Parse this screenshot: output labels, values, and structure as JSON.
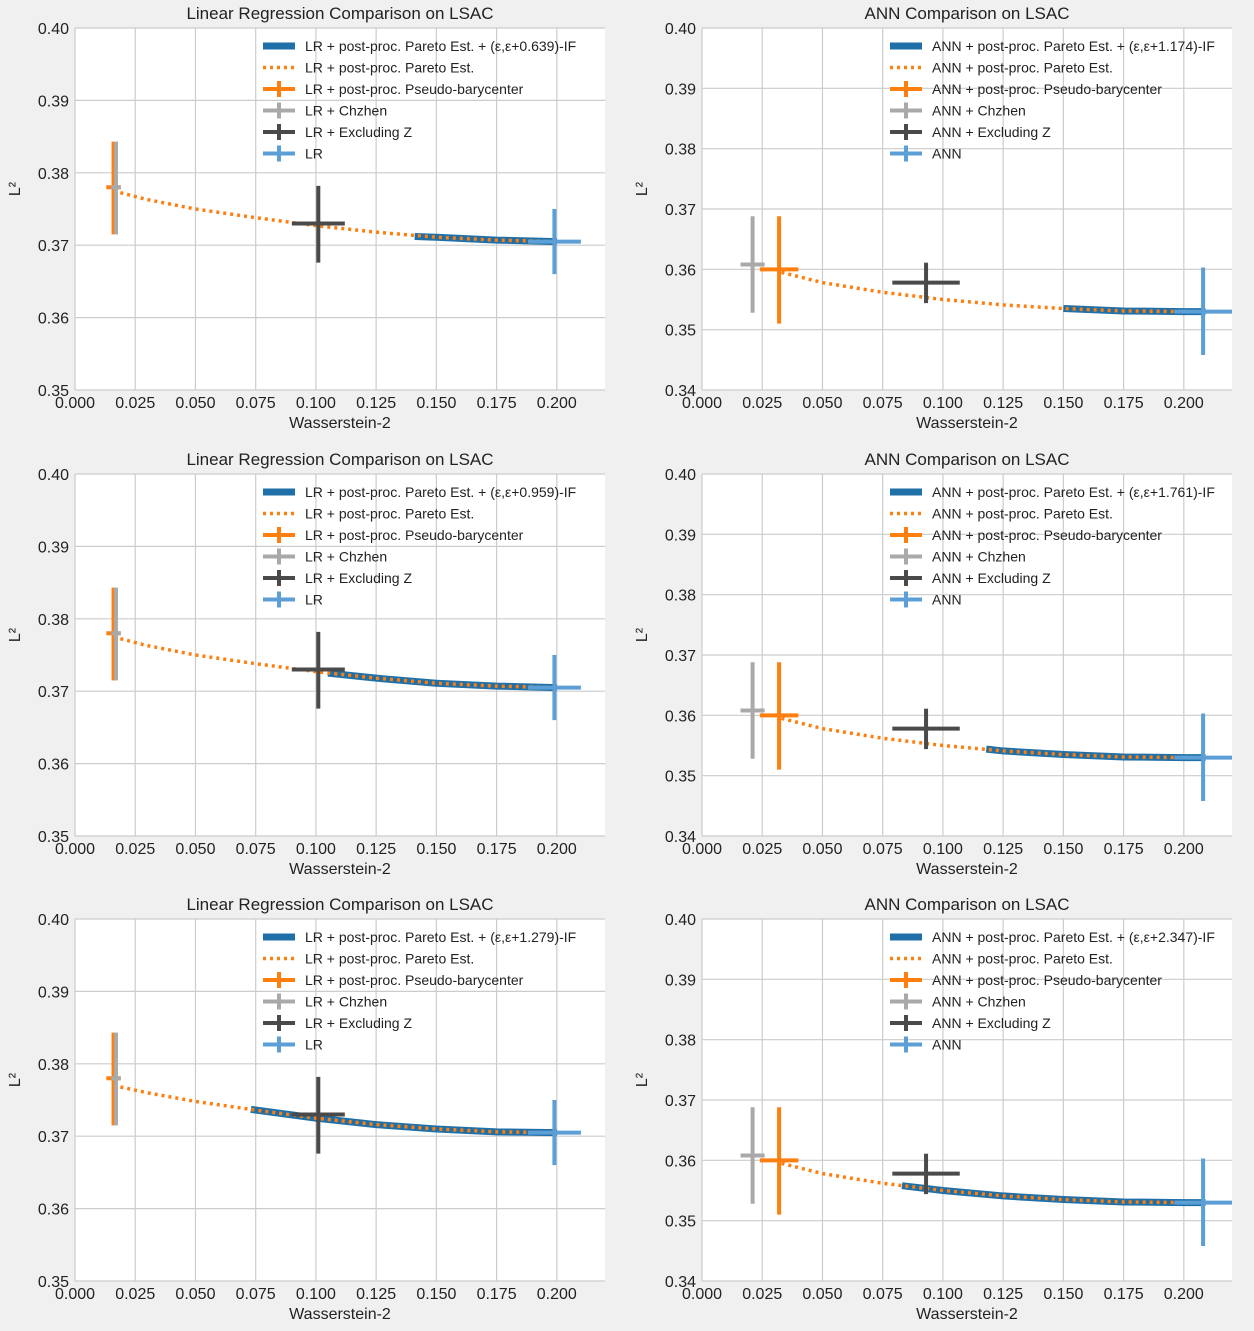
{
  "colors": {
    "pareto_if": "#1f6fa8",
    "pareto": "#ff7f0e",
    "pseudo_barycenter": "#ff7f0e",
    "chzhen": "#a9a9a9",
    "excluding_z": "#4a4a4a",
    "base": "#5b9fd6",
    "grid": "#cccccc",
    "plot_bg": "#ffffff",
    "figure_bg": "#f0f0f0"
  },
  "xlabel": "Wasserstein-2",
  "ylabel": "L²",
  "chart_data": [
    {
      "type": "line",
      "title": "Linear Regression Comparison on LSAC",
      "xlabel": "Wasserstein-2",
      "ylabel": "L²",
      "xlim": [
        0.0,
        0.22
      ],
      "ylim": [
        0.35,
        0.4
      ],
      "xticks": [
        "0.000",
        "0.025",
        "0.050",
        "0.075",
        "0.100",
        "0.125",
        "0.150",
        "0.175",
        "0.200"
      ],
      "yticks": [
        "0.35",
        "0.36",
        "0.37",
        "0.38",
        "0.39",
        "0.40"
      ],
      "grid": true,
      "legend_position": "top-right",
      "legend": [
        "LR + post-proc. Pareto Est. + (ε,ε+0.639)-IF",
        "LR + post-proc. Pareto Est.",
        "LR + post-proc. Pseudo-barycenter",
        "LR + Chzhen",
        "LR + Excluding Z",
        "LR"
      ],
      "pareto_curve": {
        "x": [
          0.016,
          0.03,
          0.05,
          0.075,
          0.1,
          0.125,
          0.15,
          0.175,
          0.2
        ],
        "y": [
          0.3775,
          0.3763,
          0.375,
          0.3738,
          0.3727,
          0.3718,
          0.3711,
          0.3707,
          0.3705
        ]
      },
      "if_segment": {
        "x": [
          0.141,
          0.15,
          0.175,
          0.2
        ],
        "y": [
          0.3712,
          0.3711,
          0.3707,
          0.3705
        ]
      },
      "errorbars": [
        {
          "series": "pseudo_barycenter",
          "x": 0.016,
          "y": 0.378,
          "xerr": 0.003,
          "yerr_low": 0.3715,
          "yerr_high": 0.3843
        },
        {
          "series": "chzhen",
          "x": 0.017,
          "y": 0.378,
          "xerr": 0.002,
          "yerr_low": 0.3715,
          "yerr_high": 0.3843
        },
        {
          "series": "excluding_z",
          "x": 0.101,
          "y": 0.373,
          "xerr": 0.011,
          "yerr_low": 0.3676,
          "yerr_high": 0.3782
        },
        {
          "series": "base",
          "x": 0.199,
          "y": 0.3705,
          "xerr": 0.011,
          "yerr_low": 0.366,
          "yerr_high": 0.375
        }
      ]
    },
    {
      "type": "line",
      "title": "ANN Comparison on LSAC",
      "xlabel": "Wasserstein-2",
      "ylabel": "L²",
      "xlim": [
        0.0,
        0.22
      ],
      "ylim": [
        0.34,
        0.4
      ],
      "xticks": [
        "0.000",
        "0.025",
        "0.050",
        "0.075",
        "0.100",
        "0.125",
        "0.150",
        "0.175",
        "0.200"
      ],
      "yticks": [
        "0.34",
        "0.35",
        "0.36",
        "0.37",
        "0.38",
        "0.39",
        "0.40"
      ],
      "grid": true,
      "legend_position": "top-right",
      "legend": [
        "ANN + post-proc. Pareto Est. + (ε,ε+1.174)-IF",
        "ANN + post-proc. Pareto Est.",
        "ANN + post-proc. Pseudo-barycenter",
        "ANN + Chzhen",
        "ANN + Excluding Z",
        "ANN"
      ],
      "pareto_curve": {
        "x": [
          0.033,
          0.05,
          0.075,
          0.1,
          0.125,
          0.15,
          0.175,
          0.2,
          0.209
        ],
        "y": [
          0.3595,
          0.3578,
          0.3562,
          0.355,
          0.3541,
          0.3535,
          0.3531,
          0.353,
          0.353
        ]
      },
      "if_segment": {
        "x": [
          0.15,
          0.175,
          0.2,
          0.209
        ],
        "y": [
          0.3535,
          0.3531,
          0.353,
          0.353
        ]
      },
      "errorbars": [
        {
          "series": "chzhen",
          "x": 0.021,
          "y": 0.3608,
          "xerr": 0.005,
          "yerr_low": 0.3528,
          "yerr_high": 0.3688
        },
        {
          "series": "pseudo_barycenter",
          "x": 0.032,
          "y": 0.36,
          "xerr": 0.008,
          "yerr_low": 0.351,
          "yerr_high": 0.3688
        },
        {
          "series": "excluding_z",
          "x": 0.093,
          "y": 0.3578,
          "xerr": 0.014,
          "yerr_low": 0.3544,
          "yerr_high": 0.3611
        },
        {
          "series": "base",
          "x": 0.208,
          "y": 0.353,
          "xerr": 0.012,
          "yerr_low": 0.3458,
          "yerr_high": 0.3603
        }
      ]
    },
    {
      "type": "line",
      "title": "Linear Regression Comparison on LSAC",
      "xlabel": "Wasserstein-2",
      "ylabel": "L²",
      "xlim": [
        0.0,
        0.22
      ],
      "ylim": [
        0.35,
        0.4
      ],
      "xticks": [
        "0.000",
        "0.025",
        "0.050",
        "0.075",
        "0.100",
        "0.125",
        "0.150",
        "0.175",
        "0.200"
      ],
      "yticks": [
        "0.35",
        "0.36",
        "0.37",
        "0.38",
        "0.39",
        "0.40"
      ],
      "grid": true,
      "legend_position": "top-right",
      "legend": [
        "LR + post-proc. Pareto Est. + (ε,ε+0.959)-IF",
        "LR + post-proc. Pareto Est.",
        "LR + post-proc. Pseudo-barycenter",
        "LR + Chzhen",
        "LR + Excluding Z",
        "LR"
      ],
      "pareto_curve": {
        "x": [
          0.016,
          0.03,
          0.05,
          0.075,
          0.1,
          0.125,
          0.15,
          0.175,
          0.2
        ],
        "y": [
          0.3775,
          0.3763,
          0.375,
          0.3738,
          0.3727,
          0.3718,
          0.3711,
          0.3707,
          0.3705
        ]
      },
      "if_segment": {
        "x": [
          0.105,
          0.125,
          0.15,
          0.175,
          0.2
        ],
        "y": [
          0.3725,
          0.3718,
          0.3711,
          0.3707,
          0.3705
        ]
      },
      "errorbars": [
        {
          "series": "pseudo_barycenter",
          "x": 0.016,
          "y": 0.378,
          "xerr": 0.003,
          "yerr_low": 0.3715,
          "yerr_high": 0.3843
        },
        {
          "series": "chzhen",
          "x": 0.017,
          "y": 0.378,
          "xerr": 0.002,
          "yerr_low": 0.3715,
          "yerr_high": 0.3843
        },
        {
          "series": "excluding_z",
          "x": 0.101,
          "y": 0.373,
          "xerr": 0.011,
          "yerr_low": 0.3676,
          "yerr_high": 0.3782
        },
        {
          "series": "base",
          "x": 0.199,
          "y": 0.3705,
          "xerr": 0.011,
          "yerr_low": 0.366,
          "yerr_high": 0.375
        }
      ]
    },
    {
      "type": "line",
      "title": "ANN Comparison on LSAC",
      "xlabel": "Wasserstein-2",
      "ylabel": "L²",
      "xlim": [
        0.0,
        0.22
      ],
      "ylim": [
        0.34,
        0.4
      ],
      "xticks": [
        "0.000",
        "0.025",
        "0.050",
        "0.075",
        "0.100",
        "0.125",
        "0.150",
        "0.175",
        "0.200"
      ],
      "yticks": [
        "0.34",
        "0.35",
        "0.36",
        "0.37",
        "0.38",
        "0.39",
        "0.40"
      ],
      "grid": true,
      "legend_position": "top-right",
      "legend": [
        "ANN + post-proc. Pareto Est. + (ε,ε+1.761)-IF",
        "ANN + post-proc. Pareto Est.",
        "ANN + post-proc. Pseudo-barycenter",
        "ANN + Chzhen",
        "ANN + Excluding Z",
        "ANN"
      ],
      "pareto_curve": {
        "x": [
          0.033,
          0.05,
          0.075,
          0.1,
          0.125,
          0.15,
          0.175,
          0.2,
          0.209
        ],
        "y": [
          0.3595,
          0.3578,
          0.3562,
          0.355,
          0.3541,
          0.3535,
          0.3531,
          0.353,
          0.353
        ]
      },
      "if_segment": {
        "x": [
          0.118,
          0.125,
          0.15,
          0.175,
          0.2,
          0.209
        ],
        "y": [
          0.3544,
          0.3541,
          0.3535,
          0.3531,
          0.353,
          0.353
        ]
      },
      "errorbars": [
        {
          "series": "chzhen",
          "x": 0.021,
          "y": 0.3608,
          "xerr": 0.005,
          "yerr_low": 0.3528,
          "yerr_high": 0.3688
        },
        {
          "series": "pseudo_barycenter",
          "x": 0.032,
          "y": 0.36,
          "xerr": 0.008,
          "yerr_low": 0.351,
          "yerr_high": 0.3688
        },
        {
          "series": "excluding_z",
          "x": 0.093,
          "y": 0.3578,
          "xerr": 0.014,
          "yerr_low": 0.3544,
          "yerr_high": 0.3611
        },
        {
          "series": "base",
          "x": 0.208,
          "y": 0.353,
          "xerr": 0.012,
          "yerr_low": 0.3458,
          "yerr_high": 0.3603
        }
      ]
    },
    {
      "type": "line",
      "title": "Linear Regression Comparison on LSAC",
      "xlabel": "Wasserstein-2",
      "ylabel": "L²",
      "xlim": [
        0.0,
        0.22
      ],
      "ylim": [
        0.35,
        0.4
      ],
      "xticks": [
        "0.000",
        "0.025",
        "0.050",
        "0.075",
        "0.100",
        "0.125",
        "0.150",
        "0.175",
        "0.200"
      ],
      "yticks": [
        "0.35",
        "0.36",
        "0.37",
        "0.38",
        "0.39",
        "0.40"
      ],
      "grid": true,
      "legend_position": "top-right",
      "legend": [
        "LR + post-proc. Pareto Est. + (ε,ε+1.279)-IF",
        "LR + post-proc. Pareto Est.",
        "LR + post-proc. Pseudo-barycenter",
        "LR + Chzhen",
        "LR + Excluding Z",
        "LR"
      ],
      "pareto_curve": {
        "x": [
          0.016,
          0.03,
          0.05,
          0.075,
          0.1,
          0.125,
          0.15,
          0.175,
          0.2
        ],
        "y": [
          0.377,
          0.376,
          0.3748,
          0.3736,
          0.3725,
          0.3716,
          0.371,
          0.3706,
          0.3705
        ]
      },
      "if_segment": {
        "x": [
          0.073,
          0.1,
          0.125,
          0.15,
          0.175,
          0.2
        ],
        "y": [
          0.3737,
          0.3725,
          0.3716,
          0.371,
          0.3706,
          0.3705
        ]
      },
      "errorbars": [
        {
          "series": "pseudo_barycenter",
          "x": 0.016,
          "y": 0.378,
          "xerr": 0.003,
          "yerr_low": 0.3715,
          "yerr_high": 0.3843
        },
        {
          "series": "chzhen",
          "x": 0.017,
          "y": 0.378,
          "xerr": 0.002,
          "yerr_low": 0.3715,
          "yerr_high": 0.3843
        },
        {
          "series": "excluding_z",
          "x": 0.101,
          "y": 0.373,
          "xerr": 0.011,
          "yerr_low": 0.3676,
          "yerr_high": 0.3782
        },
        {
          "series": "base",
          "x": 0.199,
          "y": 0.3705,
          "xerr": 0.011,
          "yerr_low": 0.366,
          "yerr_high": 0.375
        }
      ]
    },
    {
      "type": "line",
      "title": "ANN Comparison on LSAC",
      "xlabel": "Wasserstein-2",
      "ylabel": "L²",
      "xlim": [
        0.0,
        0.22
      ],
      "ylim": [
        0.34,
        0.4
      ],
      "xticks": [
        "0.000",
        "0.025",
        "0.050",
        "0.075",
        "0.100",
        "0.125",
        "0.150",
        "0.175",
        "0.200"
      ],
      "yticks": [
        "0.34",
        "0.35",
        "0.36",
        "0.37",
        "0.38",
        "0.39",
        "0.40"
      ],
      "grid": true,
      "legend_position": "top-right",
      "legend": [
        "ANN + post-proc. Pareto Est. + (ε,ε+2.347)-IF",
        "ANN + post-proc. Pareto Est.",
        "ANN + post-proc. Pseudo-barycenter",
        "ANN + Chzhen",
        "ANN + Excluding Z",
        "ANN"
      ],
      "pareto_curve": {
        "x": [
          0.033,
          0.05,
          0.075,
          0.1,
          0.125,
          0.15,
          0.175,
          0.2,
          0.209
        ],
        "y": [
          0.3595,
          0.3578,
          0.3562,
          0.355,
          0.3541,
          0.3535,
          0.3531,
          0.353,
          0.353
        ]
      },
      "if_segment": {
        "x": [
          0.083,
          0.1,
          0.125,
          0.15,
          0.175,
          0.2,
          0.209
        ],
        "y": [
          0.3558,
          0.355,
          0.3541,
          0.3535,
          0.3531,
          0.353,
          0.353
        ]
      },
      "errorbars": [
        {
          "series": "chzhen",
          "x": 0.021,
          "y": 0.3608,
          "xerr": 0.005,
          "yerr_low": 0.3528,
          "yerr_high": 0.3688
        },
        {
          "series": "pseudo_barycenter",
          "x": 0.032,
          "y": 0.36,
          "xerr": 0.008,
          "yerr_low": 0.351,
          "yerr_high": 0.3688
        },
        {
          "series": "excluding_z",
          "x": 0.093,
          "y": 0.3578,
          "xerr": 0.014,
          "yerr_low": 0.3544,
          "yerr_high": 0.3611
        },
        {
          "series": "base",
          "x": 0.208,
          "y": 0.353,
          "xerr": 0.012,
          "yerr_low": 0.3458,
          "yerr_high": 0.3603
        }
      ]
    }
  ]
}
